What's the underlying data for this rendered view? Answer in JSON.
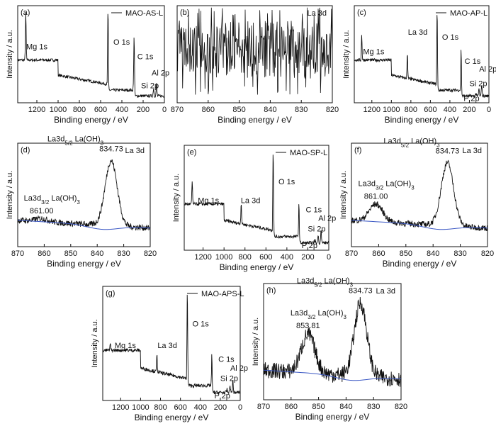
{
  "chart_data": [
    {
      "panel": "(a)",
      "type": "line",
      "legend": "MAO-AS-L",
      "xlabel": "Binding energy / eV",
      "ylabel": "Intensity / a.u.",
      "xlim": [
        1380,
        0
      ],
      "xticks": [
        1200,
        1000,
        800,
        600,
        400,
        200,
        0
      ],
      "peaks": [
        {
          "label": "Mg 1s",
          "x": 1304,
          "y": 0.93,
          "lx": 1300,
          "ly": 0.55
        },
        {
          "label": "O 1s",
          "x": 531,
          "y": 0.97,
          "lx": 480,
          "ly": 0.6
        },
        {
          "label": "C 1s",
          "x": 285,
          "y": 0.7,
          "lx": 255,
          "ly": 0.45
        },
        {
          "label": "Al 2p",
          "x": 74,
          "y": 0.2,
          "lx": 120,
          "ly": 0.28
        },
        {
          "label": "Si 2p",
          "x": 102,
          "y": 0.15,
          "lx": 220,
          "ly": 0.15
        }
      ]
    },
    {
      "panel": "(b)",
      "type": "line",
      "legend": "La 3d",
      "xlabel": "Binding energy / eV",
      "ylabel": "",
      "xlim": [
        870,
        820
      ],
      "xticks": [
        870,
        860,
        850,
        840,
        830,
        820
      ],
      "note": "noise"
    },
    {
      "panel": "(c)",
      "type": "line",
      "legend": "MAO-AP-L",
      "xlabel": "Binding energy / eV",
      "ylabel": "Intensity / a.u.",
      "xlim": [
        1380,
        0
      ],
      "xticks": [
        1200,
        1000,
        800,
        600,
        400,
        200,
        0
      ],
      "peaks": [
        {
          "label": "Mg 1s",
          "x": 1304,
          "y": 0.7,
          "lx": 1290,
          "ly": 0.5
        },
        {
          "label": "La 3d",
          "x": 836,
          "y": 0.5,
          "lx": 830,
          "ly": 0.7
        },
        {
          "label": "O 1s",
          "x": 531,
          "y": 0.97,
          "lx": 480,
          "ly": 0.65
        },
        {
          "label": "C 1s",
          "x": 285,
          "y": 0.55,
          "lx": 250,
          "ly": 0.4
        },
        {
          "label": "Al 2p",
          "x": 74,
          "y": 0.2,
          "lx": 100,
          "ly": 0.32
        },
        {
          "label": "Si 2p",
          "x": 102,
          "y": 0.15,
          "lx": 200,
          "ly": 0.17
        },
        {
          "label": "P 2p",
          "x": 133,
          "y": 0.1,
          "lx": 260,
          "ly": 0.02
        }
      ]
    },
    {
      "panel": "(d)",
      "type": "line",
      "legend": "La 3d",
      "xlabel": "Binding energy / eV",
      "ylabel": "Intensity / a.u.",
      "xlim": [
        870,
        820
      ],
      "xticks": [
        870,
        860,
        850,
        840,
        830,
        820
      ],
      "peaks": [
        {
          "label": "834.73",
          "x": 834.73,
          "y": 0.88
        },
        {
          "label": "861.00",
          "x": 861.0,
          "y": 0.28
        }
      ],
      "annotations": [
        "La3d5/2 La(OH)3",
        "La3d3/2 La(OH)3"
      ]
    },
    {
      "panel": "(e)",
      "type": "line",
      "legend": "MAO-SP-L",
      "xlabel": "Binding energy / eV",
      "ylabel": "Intensity / a.u.",
      "xlim": [
        1380,
        0
      ],
      "xticks": [
        1200,
        1000,
        800,
        600,
        400,
        200,
        0
      ],
      "peaks": [
        {
          "label": "Mg 1s",
          "x": 1304,
          "y": 0.65,
          "lx": 1250,
          "ly": 0.45
        },
        {
          "label": "La 3d",
          "x": 836,
          "y": 0.45,
          "lx": 840,
          "ly": 0.45
        },
        {
          "label": "O 1s",
          "x": 531,
          "y": 0.97,
          "lx": 480,
          "ly": 0.63
        },
        {
          "label": "C 1s",
          "x": 285,
          "y": 0.45,
          "lx": 220,
          "ly": 0.36
        },
        {
          "label": "Al 2p",
          "x": 74,
          "y": 0.2,
          "lx": 100,
          "ly": 0.28
        },
        {
          "label": "Si 2p",
          "x": 102,
          "y": 0.15,
          "lx": 200,
          "ly": 0.18
        },
        {
          "label": "P 2p",
          "x": 133,
          "y": 0.1,
          "lx": 260,
          "ly": 0.02
        }
      ]
    },
    {
      "panel": "(f)",
      "type": "line",
      "legend": "La 3d",
      "xlabel": "Binding energy / eV",
      "ylabel": "Intensity / a.u.",
      "xlim": [
        870,
        820
      ],
      "xticks": [
        870,
        860,
        850,
        840,
        830,
        820
      ],
      "peaks": [
        {
          "label": "834.73",
          "x": 834.73,
          "y": 0.86
        },
        {
          "label": "861.00",
          "x": 861.0,
          "y": 0.42
        }
      ],
      "annotations": [
        "La3d5/2 La(OH)3",
        "La3d3/2 La(OH)3"
      ]
    },
    {
      "panel": "(g)",
      "type": "line",
      "legend": "MAO-APS-L",
      "xlabel": "Binding energy / eV",
      "ylabel": "Intensity / a.u.",
      "xlim": [
        1380,
        0
      ],
      "xticks": [
        1200,
        1000,
        800,
        600,
        400,
        200,
        0
      ],
      "peaks": [
        {
          "label": "Mg 1s",
          "x": 1304,
          "y": 0.5,
          "lx": 1260,
          "ly": 0.46
        },
        {
          "label": "La 3d",
          "x": 836,
          "y": 0.4,
          "lx": 830,
          "ly": 0.46
        },
        {
          "label": "O 1s",
          "x": 531,
          "y": 0.97,
          "lx": 480,
          "ly": 0.65
        },
        {
          "label": "C 1s",
          "x": 285,
          "y": 0.4,
          "lx": 220,
          "ly": 0.34
        },
        {
          "label": "Al 2p",
          "x": 74,
          "y": 0.18,
          "lx": 100,
          "ly": 0.26
        },
        {
          "label": "Si 2p",
          "x": 102,
          "y": 0.14,
          "lx": 200,
          "ly": 0.17
        },
        {
          "label": "P 2p",
          "x": 133,
          "y": 0.1,
          "lx": 260,
          "ly": 0.02
        }
      ]
    },
    {
      "panel": "(h)",
      "type": "line",
      "legend": "La 3d",
      "xlabel": "Binding energy / eV",
      "ylabel": "Intensity / a.u.",
      "xlim": [
        870,
        820
      ],
      "xticks": [
        870,
        860,
        850,
        840,
        830,
        820
      ],
      "peaks": [
        {
          "label": "834.73",
          "x": 834.73,
          "y": 0.88
        },
        {
          "label": "853.81",
          "x": 853.81,
          "y": 0.58
        }
      ],
      "annotations": [
        "La3d5/2 La(OH)3",
        "La3d3/2 La(OH)3"
      ]
    }
  ]
}
